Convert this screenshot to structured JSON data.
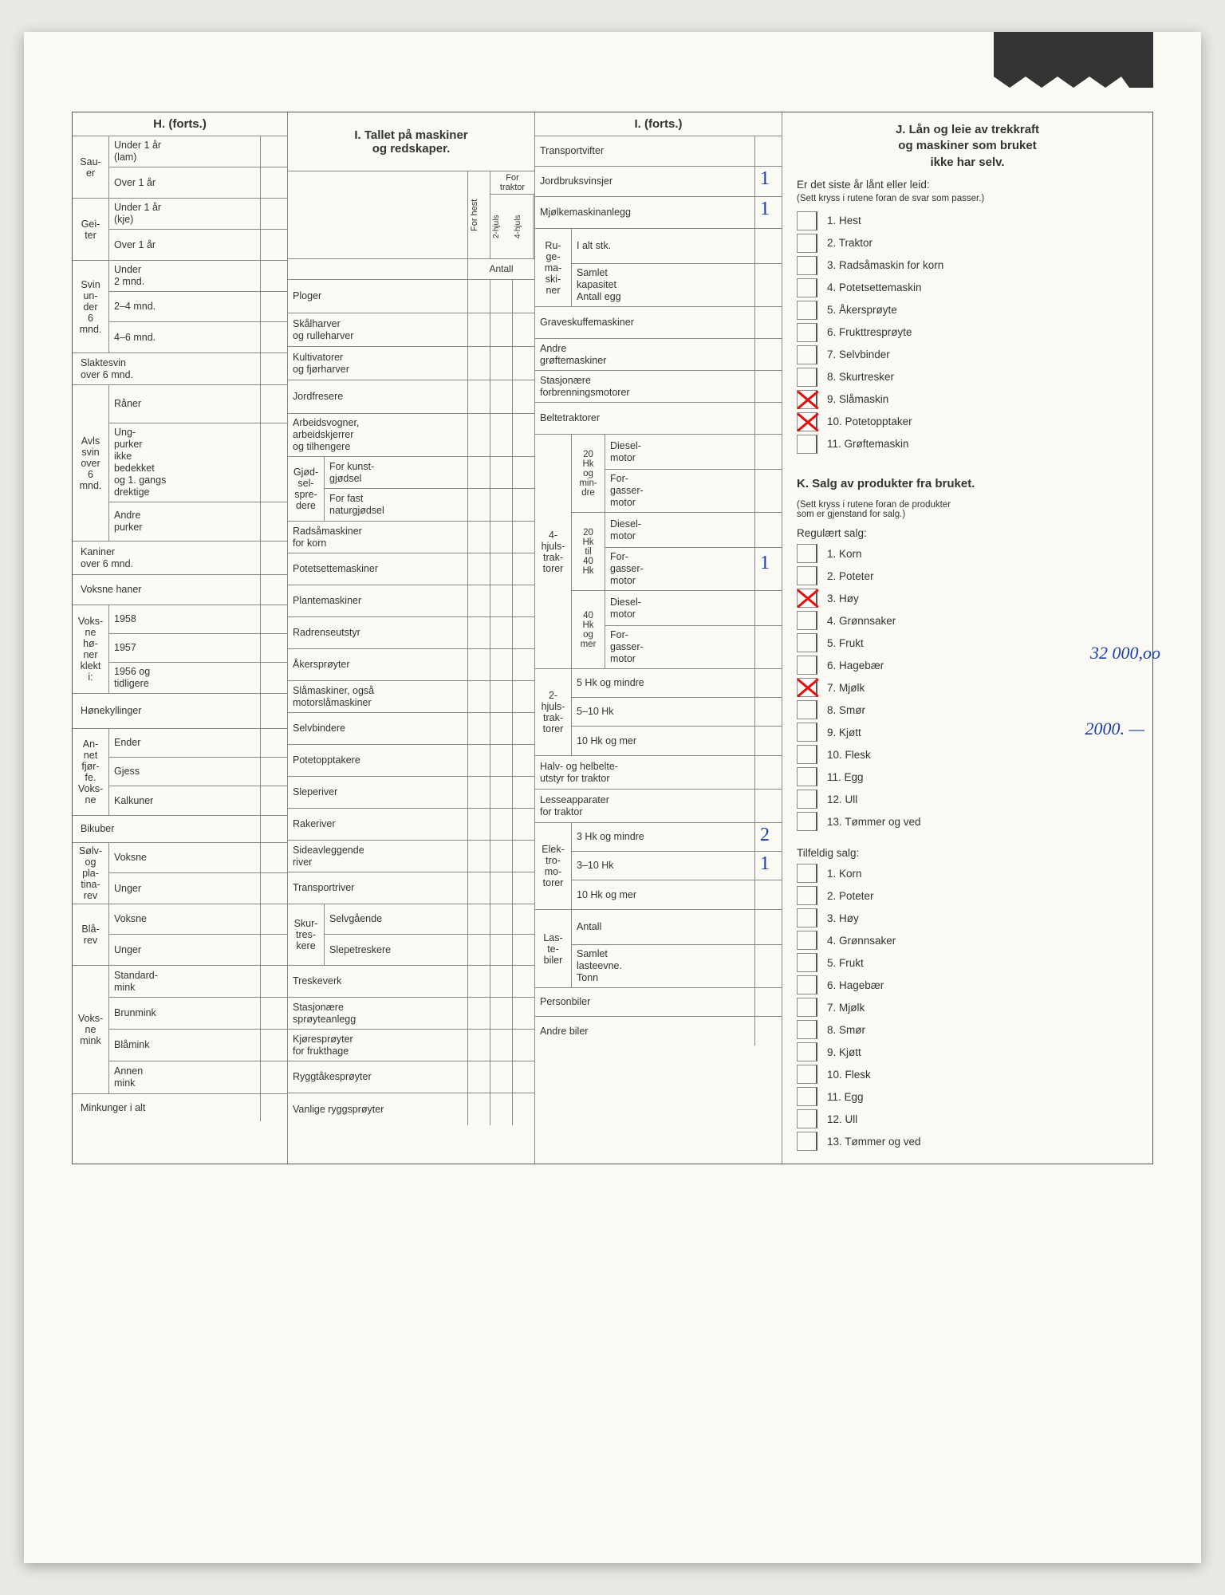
{
  "H": {
    "title": "H. (forts.)",
    "groups": [
      {
        "side": "Sau-\ner",
        "rows": [
          "Under 1 år\n(lam)",
          "Over 1 år"
        ]
      },
      {
        "side": "Gei-\nter",
        "rows": [
          "Under 1 år\n(kje)",
          "Over 1 år"
        ]
      },
      {
        "side": "Svin\nun-\nder\n6\nmnd.",
        "rows": [
          "Under\n2 mnd.",
          "2–4 mnd.",
          "4–6 mnd."
        ]
      }
    ],
    "single1": "Slaktesvin\nover 6 mnd.",
    "avls": {
      "side": "Avls\nsvin\nover\n6\nmnd.",
      "rows": [
        "Råner",
        "Ung-\npurker\nikke\nbedekket\nog 1. gangs\ndrektige",
        "Andre\npurker"
      ]
    },
    "single2": "Kaniner\nover 6 mnd.",
    "single3": "Voksne haner",
    "honer": {
      "side": "Voks-\nne\nhø-\nner\nklekt\ni:",
      "rows": [
        "1958",
        "1957",
        "1956 og\ntidligere"
      ]
    },
    "single4": "Hønekyllinger",
    "fjorfe": {
      "side": "An-\nnet\nfjør-\nfe.\nVoks-\nne",
      "rows": [
        "Ender",
        "Gjess",
        "Kalkuner"
      ]
    },
    "single5": "Bikuber",
    "rev1": {
      "side": "Sølv-\nog\npla-\ntina-\nrev",
      "rows": [
        "Voksne",
        "Unger"
      ]
    },
    "rev2": {
      "side": "Blå-\nrev",
      "rows": [
        "Voksne",
        "Unger"
      ]
    },
    "mink": {
      "side": "Voks-\nne\nmink",
      "rows": [
        "Standard-\nmink",
        "Brunmink",
        "Blåmink",
        "Annen\nmink"
      ]
    },
    "single6": "Minkunger i alt"
  },
  "I": {
    "title": "I. Tallet på maskiner\nog redskaper.",
    "headCols": {
      "forhest": "For hest",
      "traktor": "For\ntraktor",
      "c2": "2-hjuls",
      "c4": "4-hjuls",
      "antall": "Antall"
    },
    "rows": [
      "Ploger",
      "Skålharver\nog rulleharver",
      "Kultivatorer\nog fjørharver",
      "Jordfresere",
      "Arbeidsvogner,\narbeidskjerrer\nog tilhengere"
    ],
    "gjodsel": {
      "side": "Gjød-\nsel-\nspre-\ndere",
      "rows": [
        "For kunst-\ngjødsel",
        "For fast\nnaturgjødsel"
      ]
    },
    "rows2": [
      "Radsåmaskiner\nfor korn",
      "Potetsettemaskiner",
      "Plantemaskiner",
      "Radrenseutstyr",
      "Åkersprøyter",
      "Slåmaskiner, også\nmotorslåmaskiner",
      "Selvbindere",
      "Potetopptakere",
      "Sleperiver",
      "Rakeriver",
      "Sideavleggende\nriver",
      "Transportriver"
    ],
    "skur": {
      "side": "Skur-\ntres-\nkere",
      "rows": [
        "Selvgående",
        "Slepetreskere"
      ]
    },
    "rows3": [
      "Treskeverk",
      "Stasjonære\nsprøyteanlegg",
      "Kjøresprøyter\nfor frukthage",
      "Ryggtåkesprøyter",
      "Vanlige ryggsprøyter"
    ]
  },
  "Ic": {
    "title": "I. (forts.)",
    "top": [
      "Transportvifter",
      "Jordbruksvinsjer",
      "Mjølkemaskinanlegg"
    ],
    "ruge": {
      "side": "Ru-\nge-\nma-\nski-\nner",
      "rows": [
        "I alt stk.",
        "Samlet\nkapasitet\nAntall egg"
      ]
    },
    "rows": [
      "Graveskuffemaskiner",
      "Andre\ngrøftemaskiner",
      "Stasjonære\nforbrenningsmotorer",
      "Beltetraktorer"
    ],
    "trak4": {
      "side": "4-\nhjuls-\ntrak-\ntorer",
      "grp": [
        {
          "g": "20\nHk\nog\nmin-\ndre",
          "r": [
            "Diesel-\nmotor",
            "For-\ngasser-\nmotor"
          ]
        },
        {
          "g": "20\nHk\ntil\n40\nHk",
          "r": [
            "Diesel-\nmotor",
            "For-\ngasser-\nmotor"
          ]
        },
        {
          "g": "40\nHk\nog\nmer",
          "r": [
            "Diesel-\nmotor",
            "For-\ngasser-\nmotor"
          ]
        }
      ]
    },
    "trak2": {
      "side": "2-\nhjuls-\ntrak-\ntorer",
      "rows": [
        "5 Hk og mindre",
        "5–10 Hk",
        "10 Hk og mer"
      ]
    },
    "rows2": [
      "Halv- og helbelte-\nutstyr for traktor",
      "Lesseapparater\nfor traktor"
    ],
    "elek": {
      "side": "Elek-\ntro-\nmo-\ntorer",
      "rows": [
        "3 Hk og mindre",
        "3–10 Hk",
        "10 Hk og mer"
      ]
    },
    "laste": {
      "side": "Las-\nte-\nbiler",
      "rows": [
        "Antall",
        "Samlet\nlasteevne.\nTonn"
      ]
    },
    "rows3": [
      "Personbiler",
      "Andre biler"
    ],
    "ticks": {
      "jordbruk": "1",
      "mjolke": "1",
      "forgass2": "1",
      "elek1": "2",
      "elek2": "1"
    }
  },
  "J": {
    "title": "J. Lån og leie av trekkraft\nog maskiner som bruket\nikke har selv.",
    "lead": "Er det siste år lånt eller leid:",
    "hint": "(Sett kryss i rutene foran de svar som passer.)",
    "opts": [
      "1. Hest",
      "2. Traktor",
      "3. Radsåmaskin for korn",
      "4. Potetsettemaskin",
      "5. Åkersprøyte",
      "6. Frukttresprøyte",
      "7. Selvbinder",
      "8. Skurtresker",
      "9. Slåmaskin",
      "10. Potetopptaker",
      "11. Grøftemaskin"
    ],
    "checked": [
      8,
      9
    ]
  },
  "K": {
    "title": "K. Salg av produkter fra bruket.",
    "hint": "(Sett kryss i rutene foran de produkter\nsom er gjenstand for salg.)",
    "reg": "Regulært salg:",
    "regOpts": [
      "1. Korn",
      "2. Poteter",
      "3. Høy",
      "4. Grønnsaker",
      "5. Frukt",
      "6. Hagebær",
      "7. Mjølk",
      "8. Smør",
      "9. Kjøtt",
      "10. Flesk",
      "11. Egg",
      "12. Ull",
      "13. Tømmer og ved"
    ],
    "regChecked": [
      2,
      6
    ],
    "tilf": "Tilfeldig salg:",
    "tilfOpts": [
      "1. Korn",
      "2. Poteter",
      "3. Høy",
      "4. Grønnsaker",
      "5. Frukt",
      "6. Hagebær",
      "7. Mjølk",
      "8. Smør",
      "9. Kjøtt",
      "10. Flesk",
      "11. Egg",
      "12. Ull",
      "13. Tømmer og ved"
    ],
    "hand1": "32 000,oo",
    "hand2": "2000. —"
  }
}
